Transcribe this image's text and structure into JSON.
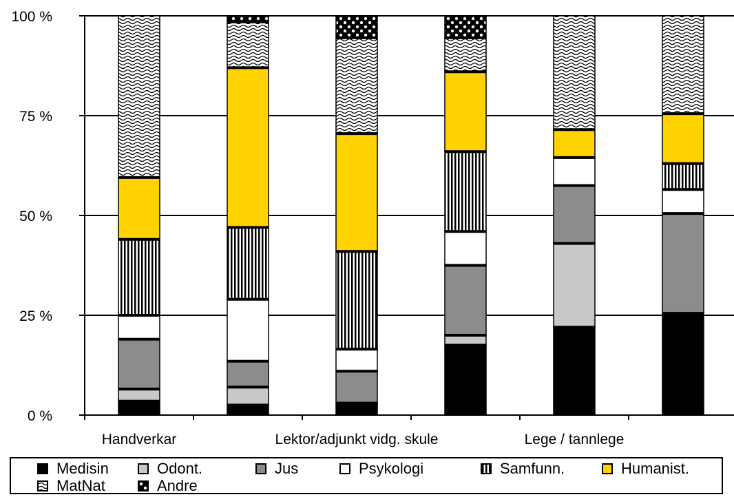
{
  "chart_data": {
    "type": "bar",
    "stacked": true,
    "percent": true,
    "ylim": [
      0,
      100
    ],
    "yticks": [
      "0 %",
      "25 %",
      "50 %",
      "75 %",
      "100 %"
    ],
    "xtick_labels": [
      "Handverkar",
      "Lektor/adjunkt vidg. skule",
      "Lege / tannlege"
    ],
    "grid": true,
    "legend_position": "bottom",
    "series": [
      {
        "name": "Medisin",
        "values": [
          3.5,
          2.5,
          3.0,
          17.5,
          22.0,
          25.5
        ]
      },
      {
        "name": "Odont.",
        "values": [
          3.0,
          4.5,
          0.0,
          2.5,
          21.0,
          0.0
        ]
      },
      {
        "name": "Jus",
        "values": [
          12.5,
          6.5,
          8.0,
          17.5,
          14.5,
          25.0
        ]
      },
      {
        "name": "Psykologi",
        "values": [
          6.0,
          15.5,
          5.5,
          8.5,
          7.0,
          6.0
        ]
      },
      {
        "name": "Samfunn.",
        "values": [
          19.0,
          18.0,
          24.5,
          20.0,
          0.0,
          6.5
        ]
      },
      {
        "name": "Humanist.",
        "values": [
          15.5,
          40.0,
          29.5,
          20.0,
          7.0,
          12.5
        ]
      },
      {
        "name": "MatNat",
        "values": [
          40.5,
          11.5,
          24.0,
          8.5,
          28.5,
          24.5
        ]
      },
      {
        "name": "Andre",
        "values": [
          0.0,
          1.5,
          5.5,
          5.5,
          0.0,
          0.0
        ]
      }
    ],
    "colors": {
      "Medisin": "#000000",
      "Odont.": "#c8c8c8",
      "Jus": "#8c8c8c",
      "Psykologi": "#ffffff",
      "Samfunn.": "#ffffff",
      "Humanist.": "#ffd200",
      "MatNat": "#ffffff",
      "Andre": "#ffffff"
    },
    "patterns": {
      "Medisin": "solid",
      "Odont.": "solid",
      "Jus": "solid",
      "Psykologi": "solid",
      "Samfunn.": "vertical-stripes",
      "Humanist.": "solid",
      "MatNat": "wave",
      "Andre": "checker-dots"
    }
  }
}
